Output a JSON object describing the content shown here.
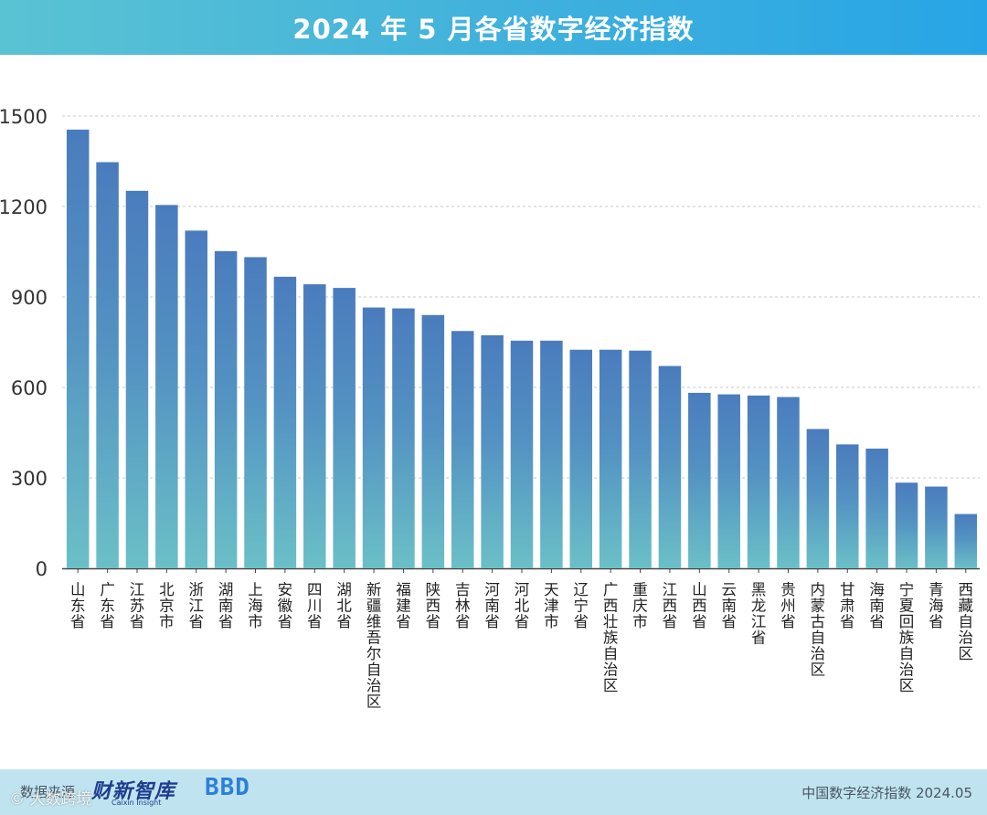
{
  "header": {
    "title": "2024 年 5 月各省数字经济指数"
  },
  "colors": {
    "bar_top": "#4a7cbd",
    "bar_bottom": "#6bc0c7",
    "axis": "#444444",
    "grid": "#c9c9c9"
  },
  "chart_data": {
    "type": "bar",
    "title": "2024 年 5 月各省数字经济指数",
    "xlabel": "",
    "ylabel": "",
    "ylim": [
      0,
      1500
    ],
    "yticks": [
      0,
      300,
      600,
      900,
      1200,
      1500
    ],
    "grid": true,
    "categories": [
      "山东省",
      "广东省",
      "江苏省",
      "北京市",
      "浙江省",
      "湖南省",
      "上海市",
      "安徽省",
      "四川省",
      "湖北省",
      "新疆维吾尔自治区",
      "福建省",
      "陕西省",
      "吉林省",
      "河南省",
      "河北省",
      "天津市",
      "辽宁省",
      "广西壮族自治区",
      "重庆市",
      "江西省",
      "山西省",
      "云南省",
      "黑龙江省",
      "贵州省",
      "内蒙古自治区",
      "甘肃省",
      "海南省",
      "宁夏回族自治区",
      "青海省",
      "西藏自治区"
    ],
    "values": [
      1455,
      1347,
      1252,
      1205,
      1120,
      1052,
      1032,
      967,
      942,
      930,
      865,
      862,
      840,
      787,
      773,
      755,
      755,
      725,
      725,
      722,
      671,
      582,
      577,
      573,
      568,
      462,
      411,
      397,
      284,
      271,
      180
    ]
  },
  "footer": {
    "source_label": "数据来源",
    "logo1": "财新智库",
    "logo1_sub": "Caixin Insight",
    "logo2": "BBD",
    "right_text": "中国数字经济指数 2024.05",
    "watermark": "© 大数跨境"
  }
}
